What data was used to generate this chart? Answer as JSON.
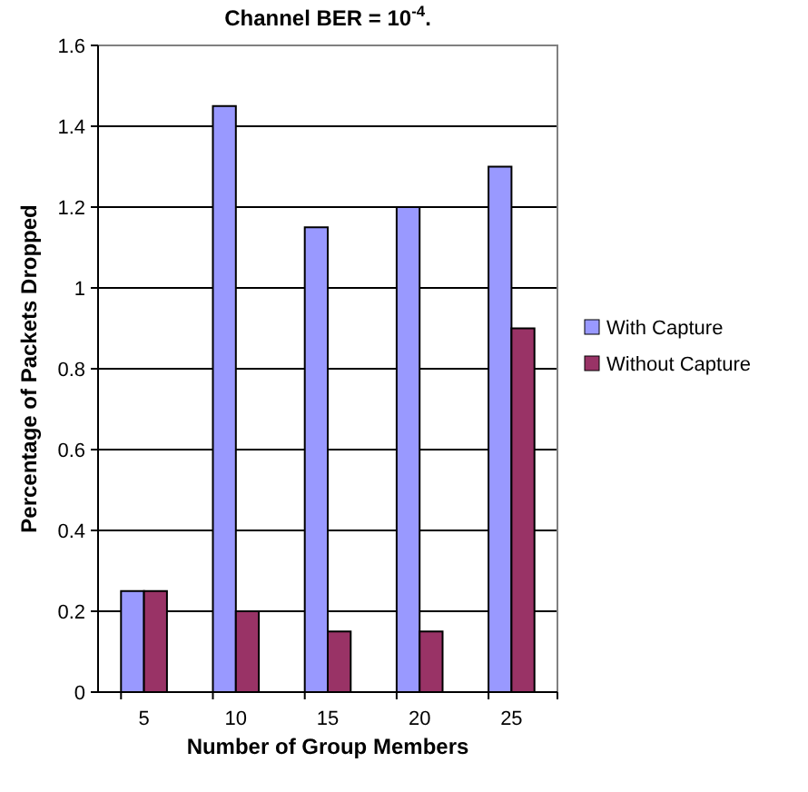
{
  "chart_data": {
    "type": "bar",
    "title": "Channel BER = 10$^{-4}$.",
    "xlabel": "Number of Group Members",
    "ylabel": "Percentage of Packets Dropped",
    "categories": [
      "5",
      "10",
      "15",
      "20",
      "25"
    ],
    "series": [
      {
        "name": "With Capture",
        "color": "#9999ff",
        "values": [
          0.25,
          1.45,
          1.15,
          1.2,
          1.3
        ]
      },
      {
        "name": "Without Capture",
        "color": "#993366",
        "values": [
          0.25,
          0.2,
          0.15,
          0.15,
          0.9
        ]
      }
    ],
    "ylim": [
      0,
      1.6
    ],
    "yticks": [
      0,
      0.2,
      0.4,
      0.6,
      0.8,
      1,
      1.2,
      1.4,
      1.6
    ],
    "grid": "y",
    "legend": "right"
  }
}
